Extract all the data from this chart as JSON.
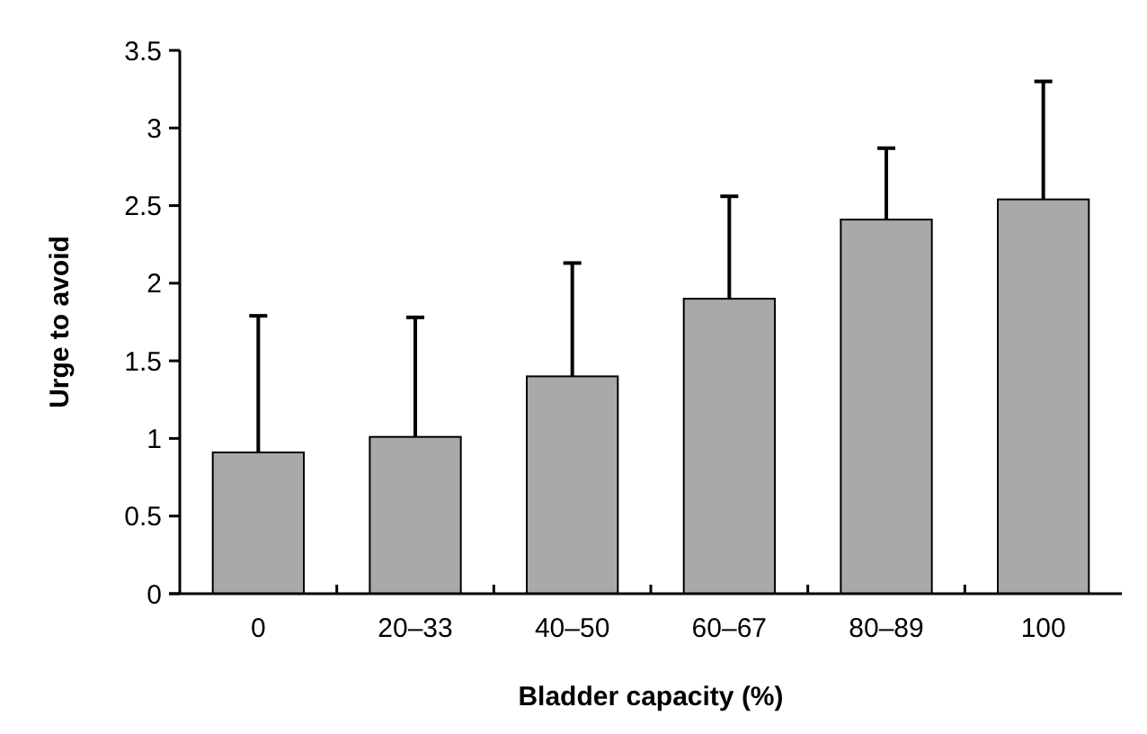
{
  "chart_data": {
    "type": "bar",
    "xlabel": "Bladder capacity (%)",
    "ylabel": "Urge to avoid",
    "categories": [
      "0",
      "20–33",
      "40–50",
      "60–67",
      "80–89",
      "100"
    ],
    "values": [
      0.91,
      1.01,
      1.4,
      1.9,
      2.41,
      2.54
    ],
    "errors": [
      [
        0.91,
        1.79
      ],
      [
        1.01,
        1.78
      ],
      [
        1.4,
        2.13
      ],
      [
        1.9,
        2.56
      ],
      [
        2.41,
        2.87
      ],
      [
        2.54,
        3.3
      ]
    ],
    "color": "#a9a9a9",
    "ylim": [
      0,
      3.5
    ],
    "yticks": [
      0,
      0.5,
      1,
      1.5,
      2,
      2.5,
      3,
      3.5
    ],
    "grid": false
  }
}
